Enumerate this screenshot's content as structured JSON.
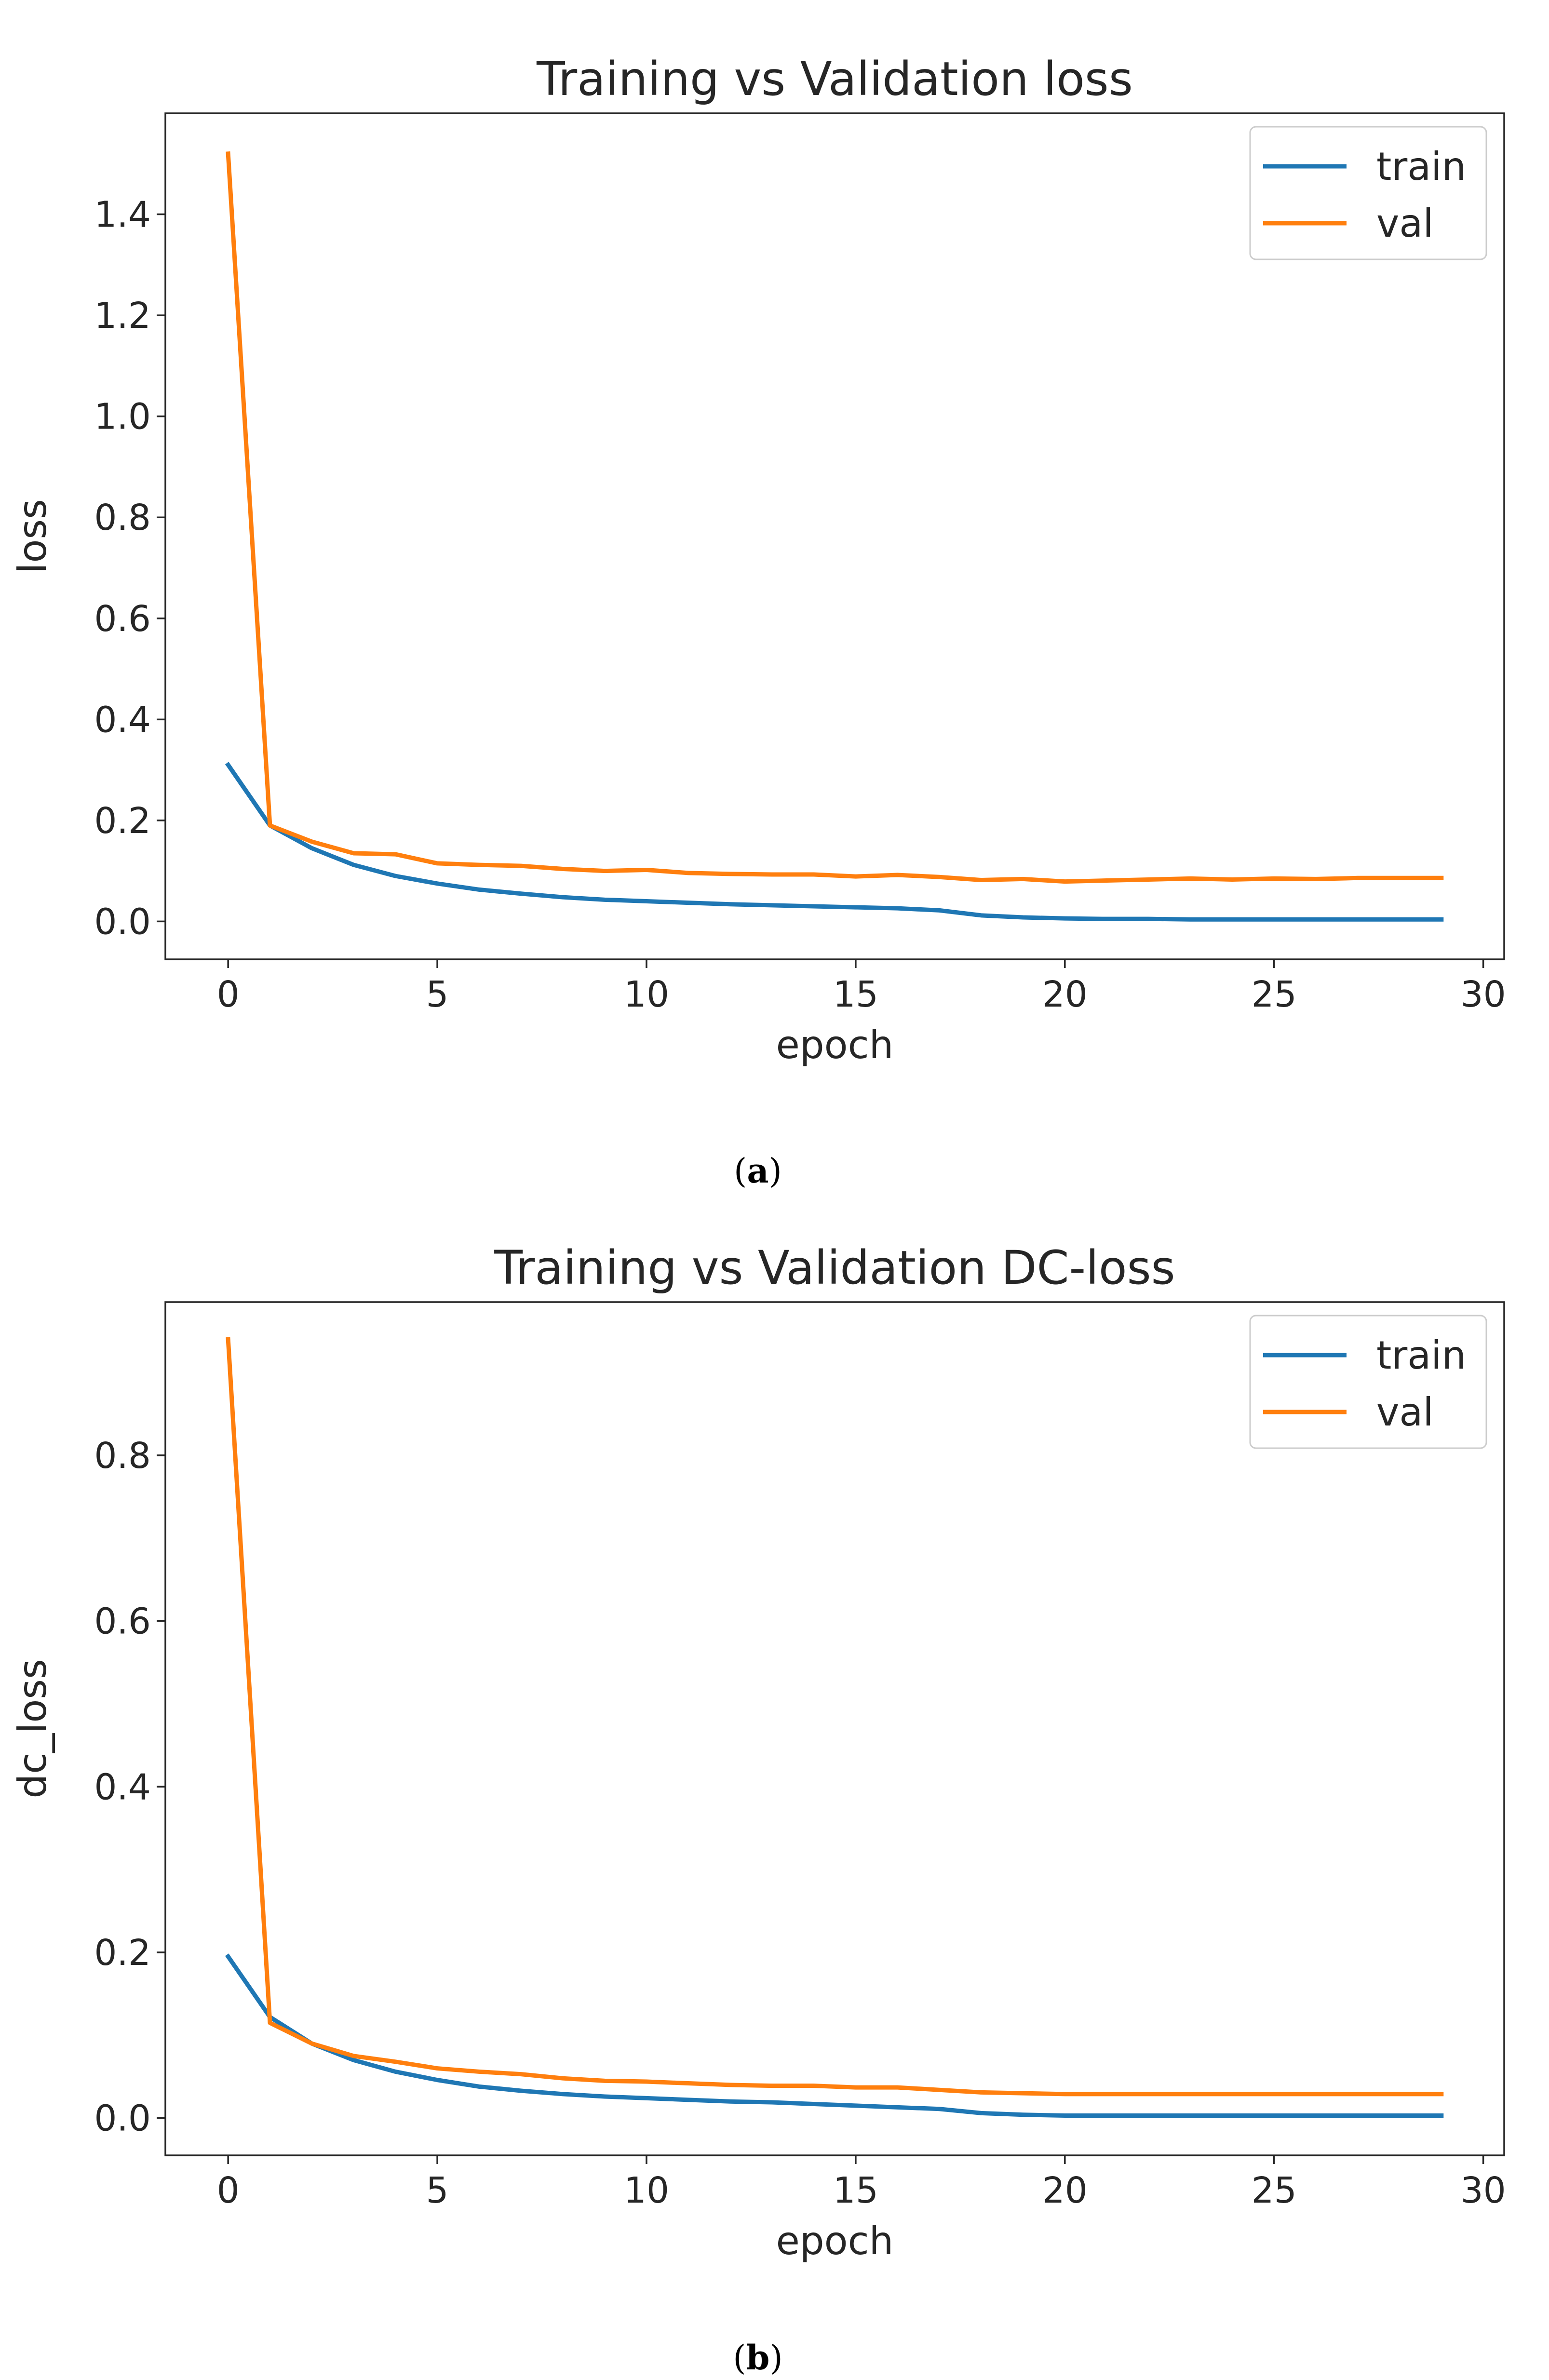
{
  "colors": {
    "train": "#1f77b4",
    "val": "#ff7f0e",
    "axis": "#262626"
  },
  "figure_captions": {
    "a": {
      "open": "(",
      "letter": "a",
      "close": ")"
    },
    "b": {
      "open": "(",
      "letter": "b",
      "close": ")"
    }
  },
  "chart_data": [
    {
      "type": "line",
      "title": "Training vs Validation loss",
      "xlabel": "epoch",
      "ylabel": "loss",
      "xlim": [
        -1.5,
        30.5
      ],
      "ylim": [
        -0.075,
        1.6
      ],
      "xticks": [
        0,
        5,
        10,
        15,
        20,
        25,
        30
      ],
      "xtick_labels": [
        "0",
        "5",
        "10",
        "15",
        "20",
        "25",
        "30"
      ],
      "yticks": [
        0.0,
        0.2,
        0.4,
        0.6,
        0.8,
        1.0,
        1.2,
        1.4
      ],
      "ytick_labels": [
        "0.0",
        "0.2",
        "0.4",
        "0.6",
        "0.8",
        "1.0",
        "1.2",
        "1.4"
      ],
      "grid": false,
      "legend": "top-right",
      "x": [
        0,
        1,
        2,
        3,
        4,
        5,
        6,
        7,
        8,
        9,
        10,
        11,
        12,
        13,
        14,
        15,
        16,
        17,
        18,
        19,
        20,
        21,
        22,
        23,
        24,
        25,
        26,
        27,
        28,
        29
      ],
      "series": [
        {
          "name": "train",
          "values": [
            0.31,
            0.19,
            0.145,
            0.112,
            0.09,
            0.075,
            0.063,
            0.055,
            0.048,
            0.043,
            0.04,
            0.037,
            0.034,
            0.032,
            0.03,
            0.028,
            0.026,
            0.022,
            0.012,
            0.008,
            0.006,
            0.005,
            0.005,
            0.004,
            0.004,
            0.004,
            0.004,
            0.004,
            0.004,
            0.004
          ]
        },
        {
          "name": "val",
          "values": [
            1.52,
            0.19,
            0.158,
            0.135,
            0.133,
            0.115,
            0.112,
            0.11,
            0.104,
            0.1,
            0.102,
            0.096,
            0.094,
            0.093,
            0.093,
            0.089,
            0.092,
            0.088,
            0.082,
            0.084,
            0.079,
            0.081,
            0.083,
            0.085,
            0.083,
            0.085,
            0.084,
            0.086,
            0.086,
            0.086
          ]
        }
      ]
    },
    {
      "type": "line",
      "title": "Training vs Validation DC-loss",
      "xlabel": "epoch",
      "ylabel": "dc_loss",
      "xlim": [
        -1.5,
        30.5
      ],
      "ylim": [
        -0.045,
        0.985
      ],
      "xticks": [
        0,
        5,
        10,
        15,
        20,
        25,
        30
      ],
      "xtick_labels": [
        "0",
        "5",
        "10",
        "15",
        "20",
        "25",
        "30"
      ],
      "yticks": [
        0.0,
        0.2,
        0.4,
        0.6,
        0.8
      ],
      "ytick_labels": [
        "0.0",
        "0.2",
        "0.4",
        "0.6",
        "0.8"
      ],
      "grid": false,
      "legend": "top-right",
      "x": [
        0,
        1,
        2,
        3,
        4,
        5,
        6,
        7,
        8,
        9,
        10,
        11,
        12,
        13,
        14,
        15,
        16,
        17,
        18,
        19,
        20,
        21,
        22,
        23,
        24,
        25,
        26,
        27,
        28,
        29
      ],
      "series": [
        {
          "name": "train",
          "values": [
            0.195,
            0.122,
            0.09,
            0.07,
            0.056,
            0.046,
            0.038,
            0.033,
            0.029,
            0.026,
            0.024,
            0.022,
            0.02,
            0.019,
            0.017,
            0.015,
            0.013,
            0.011,
            0.006,
            0.004,
            0.003,
            0.003,
            0.003,
            0.003,
            0.003,
            0.003,
            0.003,
            0.003,
            0.003,
            0.003
          ]
        },
        {
          "name": "val",
          "values": [
            0.94,
            0.115,
            0.09,
            0.075,
            0.068,
            0.06,
            0.056,
            0.053,
            0.048,
            0.045,
            0.044,
            0.042,
            0.04,
            0.039,
            0.039,
            0.037,
            0.037,
            0.034,
            0.031,
            0.03,
            0.029,
            0.029,
            0.029,
            0.029,
            0.029,
            0.029,
            0.029,
            0.029,
            0.029,
            0.029
          ]
        }
      ]
    }
  ]
}
